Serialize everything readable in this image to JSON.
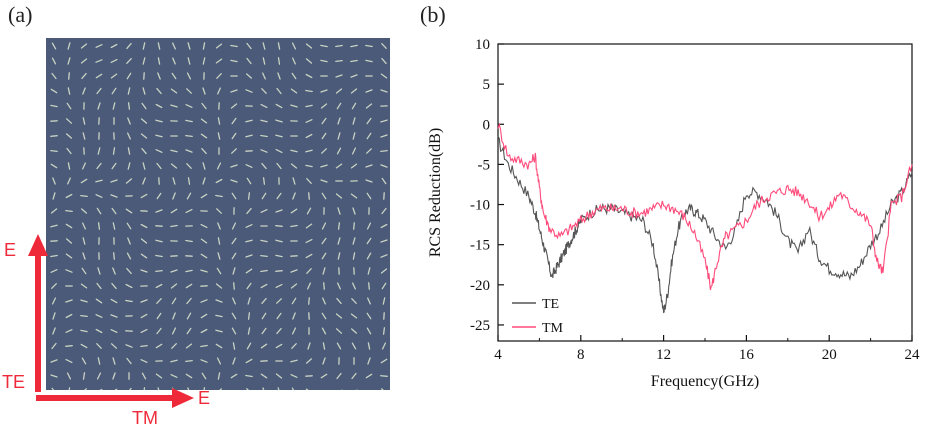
{
  "panels": {
    "a_label": "(a)",
    "b_label": "(b)"
  },
  "sample": {
    "e_vertical_label": "E",
    "te_label": "TE",
    "tm_label": "TM",
    "e_horizontal_label": "E",
    "colors": {
      "background": "#4a5a78",
      "elements": "#c9d3c3",
      "arrow": "#ee2a3a"
    }
  },
  "chart_data": {
    "type": "line",
    "xlabel": "Frequency(GHz)",
    "ylabel": "RCS Reduction(dB)",
    "xlim": [
      4,
      24
    ],
    "ylim": [
      -27,
      10
    ],
    "xticks": [
      4,
      8,
      12,
      16,
      20,
      24
    ],
    "yticks": [
      10,
      5,
      0,
      -5,
      -10,
      -15,
      -20,
      -25
    ],
    "legend_position": "bottom-left",
    "series": [
      {
        "name": "TE",
        "color": "#555555",
        "x": [
          4,
          4.5,
          5,
          5.5,
          5.8,
          6.0,
          6.2,
          6.4,
          6.6,
          6.8,
          7.0,
          7.2,
          7.4,
          7.6,
          7.8,
          8.0,
          8.5,
          9,
          9.5,
          10,
          10.5,
          11,
          11.5,
          11.8,
          12.0,
          12.2,
          12.4,
          12.7,
          13.0,
          13.3,
          13.6,
          14.0,
          14.5,
          15.0,
          15.5,
          16.0,
          16.5,
          17.0,
          17.5,
          18.0,
          18.5,
          19.0,
          19.5,
          20.0,
          20.5,
          21.0,
          21.5,
          22.0,
          22.5,
          23.0,
          23.5,
          24.0
        ],
        "y": [
          -2,
          -5,
          -7,
          -9,
          -11,
          -13,
          -15,
          -17,
          -19,
          -18,
          -17,
          -16,
          -15,
          -14,
          -13,
          -12,
          -11,
          -10.5,
          -10.5,
          -11,
          -11.5,
          -12,
          -15,
          -20,
          -23.5,
          -21,
          -17,
          -13,
          -11,
          -10.5,
          -11,
          -12,
          -14,
          -15.5,
          -13,
          -8.5,
          -8.5,
          -9.5,
          -11.5,
          -14.5,
          -16,
          -13,
          -16.5,
          -18,
          -18.5,
          -19,
          -17.5,
          -15,
          -13,
          -10,
          -8.5,
          -6
        ]
      },
      {
        "name": "TM",
        "color": "#ff4a7a",
        "x": [
          4,
          4.5,
          5,
          5.5,
          5.8,
          6.0,
          6.2,
          6.5,
          7,
          7.5,
          8,
          8.5,
          9,
          9.5,
          10,
          10.5,
          11,
          11.5,
          12,
          12.5,
          13,
          13.5,
          14.0,
          14.3,
          14.6,
          15,
          15.5,
          16,
          16.5,
          17,
          17.5,
          18,
          18.5,
          19,
          19.5,
          20,
          20.5,
          21,
          21.5,
          22,
          22.3,
          22.6,
          23,
          23.5,
          24.0
        ],
        "y": [
          0,
          -4,
          -4.5,
          -5,
          -4,
          -8,
          -11,
          -13,
          -14,
          -13,
          -12,
          -11,
          -10.5,
          -10.5,
          -10.5,
          -11,
          -11,
          -10.5,
          -10,
          -10.5,
          -11.5,
          -13.5,
          -17,
          -20.5,
          -17,
          -14,
          -13,
          -12,
          -10,
          -9,
          -8.5,
          -8,
          -8.5,
          -9.5,
          -11.5,
          -10.5,
          -8.5,
          -10,
          -11,
          -12.5,
          -17,
          -18.5,
          -10,
          -9,
          -5
        ]
      }
    ]
  }
}
